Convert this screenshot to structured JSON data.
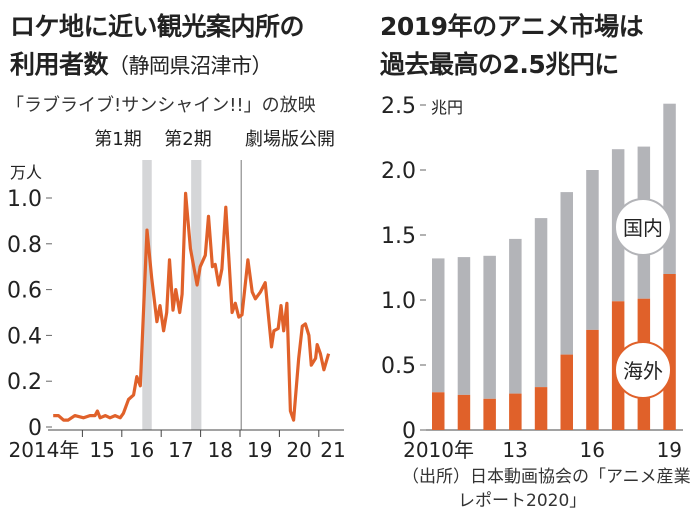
{
  "left": {
    "title_line1": "ロケ地に近い観光案内所の",
    "title_line2": "利用者数",
    "title_region": "（静岡県沼津市）",
    "subtitle": "「ラブライブ!サンシャイン!!」の放映",
    "event_labels": [
      "第1期",
      "第2期",
      "劇場版公開"
    ]
  },
  "right": {
    "title_line1": "2019年のアニメ市場は",
    "title_line2": "過去最高の2.5兆円に",
    "source_line1": "（出所）日本動画協会の「アニメ産業",
    "source_line2": "レポート2020」"
  },
  "colors": {
    "orange": "#e0612a",
    "gray": "#b3b4b8",
    "band": "#d5d6d8"
  },
  "chart_data": [
    {
      "type": "line",
      "title": "ロケ地に近い観光案内所の利用者数（静岡県沼津市）",
      "ylabel": "万人",
      "ylim": [
        0,
        1.0
      ],
      "yticks": [
        "0",
        "0.2",
        "0.4",
        "0.6",
        "0.8",
        "1.0"
      ],
      "ytick_values": [
        0,
        0.2,
        0.4,
        0.6,
        0.8,
        1.0
      ],
      "xlim": [
        2014,
        2021.3
      ],
      "xticks": [
        "2014年",
        "15",
        "16",
        "17",
        "18",
        "19",
        "20",
        "21"
      ],
      "xtick_values": [
        2014,
        2015,
        2016,
        2017,
        2018,
        2019,
        2020,
        2021
      ],
      "annotations": [
        {
          "label": "第1期",
          "type": "band",
          "x": [
            2016.52,
            2016.76
          ]
        },
        {
          "label": "第2期",
          "type": "band",
          "x": [
            2017.76,
            2018.02
          ]
        },
        {
          "label": "劇場版公開",
          "type": "line",
          "x": 2019.03
        }
      ],
      "series": [
        {
          "name": "利用者数",
          "x": [
            2014.26,
            2014.39,
            2014.52,
            2014.64,
            2014.81,
            2015.03,
            2015.19,
            2015.32,
            2015.38,
            2015.45,
            2015.58,
            2015.7,
            2015.83,
            2015.96,
            2016.04,
            2016.17,
            2016.3,
            2016.38,
            2016.47,
            2016.64,
            2016.76,
            2016.89,
            2016.97,
            2017.06,
            2017.14,
            2017.21,
            2017.3,
            2017.37,
            2017.47,
            2017.53,
            2017.62,
            2017.74,
            2017.91,
            2017.99,
            2018.12,
            2018.2,
            2018.3,
            2018.37,
            2018.46,
            2018.54,
            2018.64,
            2018.8,
            2018.88,
            2018.97,
            2019.05,
            2019.2,
            2019.31,
            2019.39,
            2019.52,
            2019.64,
            2019.8,
            2019.86,
            2019.97,
            2020.04,
            2020.11,
            2020.19,
            2020.28,
            2020.36,
            2020.49,
            2020.58,
            2020.66,
            2020.75,
            2020.81,
            2020.92,
            2020.96,
            2021.04,
            2021.13,
            2021.25
          ],
          "y": [
            0.05,
            0.05,
            0.03,
            0.03,
            0.05,
            0.04,
            0.05,
            0.05,
            0.07,
            0.04,
            0.05,
            0.04,
            0.05,
            0.04,
            0.06,
            0.12,
            0.14,
            0.22,
            0.18,
            0.86,
            0.65,
            0.46,
            0.53,
            0.42,
            0.5,
            0.73,
            0.51,
            0.6,
            0.5,
            0.58,
            1.02,
            0.78,
            0.62,
            0.7,
            0.75,
            0.92,
            0.7,
            0.71,
            0.62,
            0.69,
            0.96,
            0.5,
            0.54,
            0.48,
            0.49,
            0.73,
            0.59,
            0.56,
            0.59,
            0.63,
            0.35,
            0.42,
            0.43,
            0.53,
            0.42,
            0.54,
            0.07,
            0.03,
            0.3,
            0.44,
            0.45,
            0.4,
            0.27,
            0.3,
            0.36,
            0.32,
            0.25,
            0.32
          ]
        }
      ]
    },
    {
      "type": "bar",
      "stacked": true,
      "title": "2019年のアニメ市場は過去最高の2.5兆円に",
      "ylabel": "兆円",
      "ylim": [
        0,
        2.5
      ],
      "yticks": [
        "0",
        "0.5",
        "1.0",
        "1.5",
        "2.0",
        "2.5"
      ],
      "ytick_values": [
        0,
        0.5,
        1.0,
        1.5,
        2.0,
        2.5
      ],
      "categories": [
        "2010",
        "2011",
        "2012",
        "2013",
        "2014",
        "2015",
        "2016",
        "2017",
        "2018",
        "2019"
      ],
      "xtick_labels": [
        "2010年",
        "13",
        "16",
        "19"
      ],
      "xtick_index": [
        0,
        3,
        6,
        9
      ],
      "series": [
        {
          "name": "海外",
          "values": [
            0.29,
            0.27,
            0.24,
            0.28,
            0.33,
            0.58,
            0.77,
            0.99,
            1.01,
            1.2
          ]
        },
        {
          "name": "国内",
          "values": [
            1.03,
            1.06,
            1.1,
            1.19,
            1.3,
            1.25,
            1.23,
            1.17,
            1.17,
            1.31
          ]
        }
      ]
    }
  ]
}
